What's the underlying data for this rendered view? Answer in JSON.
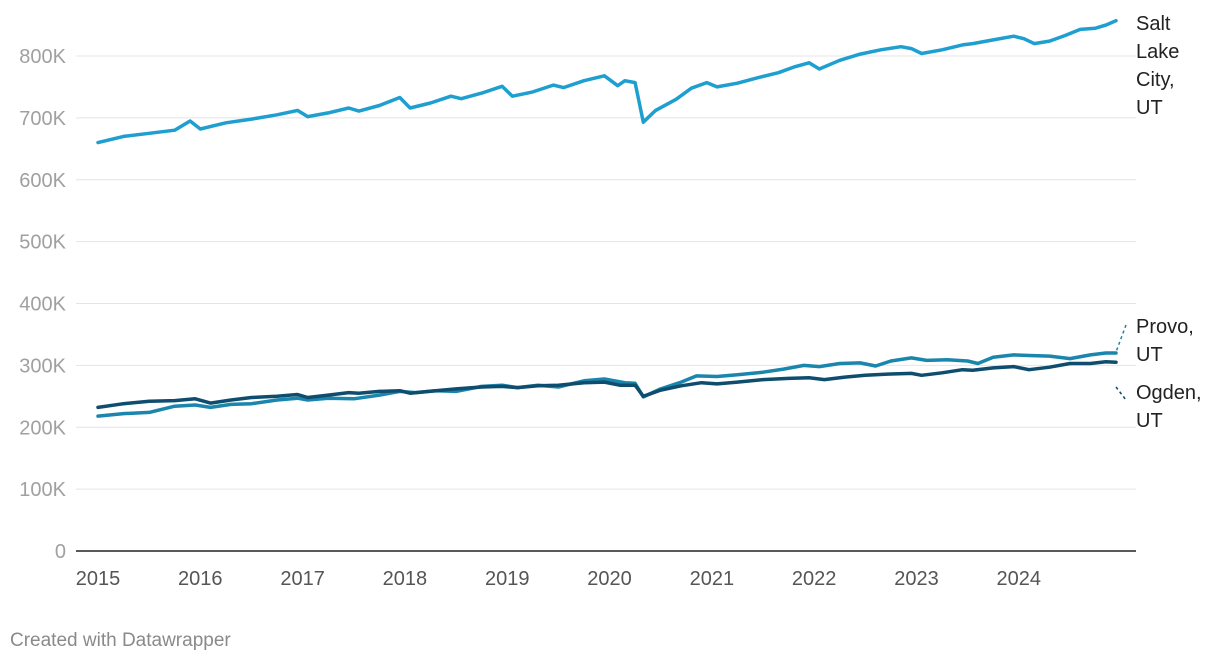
{
  "chart_data": {
    "type": "line",
    "xlim": [
      2015,
      2024.95
    ],
    "ylim": [
      0,
      850000
    ],
    "y_ticks": [
      {
        "value": 0,
        "label": "0"
      },
      {
        "value": 100000,
        "label": "100K"
      },
      {
        "value": 200000,
        "label": "200K"
      },
      {
        "value": 300000,
        "label": "300K"
      },
      {
        "value": 400000,
        "label": "400K"
      },
      {
        "value": 500000,
        "label": "500K"
      },
      {
        "value": 600000,
        "label": "600K"
      },
      {
        "value": 700000,
        "label": "700K"
      },
      {
        "value": 800000,
        "label": "800K"
      }
    ],
    "x_ticks": [
      {
        "value": 2015,
        "label": "2015"
      },
      {
        "value": 2016,
        "label": "2016"
      },
      {
        "value": 2017,
        "label": "2017"
      },
      {
        "value": 2018,
        "label": "2018"
      },
      {
        "value": 2019,
        "label": "2019"
      },
      {
        "value": 2020,
        "label": "2020"
      },
      {
        "value": 2021,
        "label": "2021"
      },
      {
        "value": 2022,
        "label": "2022"
      },
      {
        "value": 2023,
        "label": "2023"
      },
      {
        "value": 2024,
        "label": "2024"
      }
    ],
    "grid": "horizontal",
    "series": [
      {
        "name": "Salt Lake City, UT",
        "label_lines": [
          "Salt",
          "Lake",
          "City,",
          "UT"
        ],
        "color": "#1e9fd0",
        "points": [
          [
            2015.0,
            660000
          ],
          [
            2015.25,
            670000
          ],
          [
            2015.5,
            675000
          ],
          [
            2015.75,
            680000
          ],
          [
            2015.9,
            695000
          ],
          [
            2016.0,
            682000
          ],
          [
            2016.25,
            692000
          ],
          [
            2016.5,
            698000
          ],
          [
            2016.75,
            705000
          ],
          [
            2016.95,
            712000
          ],
          [
            2017.05,
            702000
          ],
          [
            2017.25,
            708000
          ],
          [
            2017.45,
            716000
          ],
          [
            2017.55,
            711000
          ],
          [
            2017.75,
            720000
          ],
          [
            2017.95,
            733000
          ],
          [
            2018.05,
            716000
          ],
          [
            2018.25,
            724000
          ],
          [
            2018.45,
            735000
          ],
          [
            2018.55,
            731000
          ],
          [
            2018.75,
            740000
          ],
          [
            2018.95,
            751000
          ],
          [
            2019.05,
            735000
          ],
          [
            2019.25,
            742000
          ],
          [
            2019.45,
            753000
          ],
          [
            2019.55,
            749000
          ],
          [
            2019.75,
            760000
          ],
          [
            2019.95,
            768000
          ],
          [
            2020.08,
            752000
          ],
          [
            2020.15,
            760000
          ],
          [
            2020.25,
            757000
          ],
          [
            2020.33,
            693000
          ],
          [
            2020.45,
            712000
          ],
          [
            2020.65,
            730000
          ],
          [
            2020.8,
            748000
          ],
          [
            2020.95,
            757000
          ],
          [
            2021.05,
            750000
          ],
          [
            2021.25,
            756000
          ],
          [
            2021.45,
            765000
          ],
          [
            2021.65,
            773000
          ],
          [
            2021.8,
            782000
          ],
          [
            2021.95,
            789000
          ],
          [
            2022.05,
            779000
          ],
          [
            2022.25,
            793000
          ],
          [
            2022.45,
            803000
          ],
          [
            2022.65,
            810000
          ],
          [
            2022.85,
            815000
          ],
          [
            2022.95,
            812000
          ],
          [
            2023.05,
            804000
          ],
          [
            2023.25,
            810000
          ],
          [
            2023.45,
            818000
          ],
          [
            2023.55,
            820000
          ],
          [
            2023.75,
            826000
          ],
          [
            2023.95,
            832000
          ],
          [
            2024.05,
            828000
          ],
          [
            2024.15,
            820000
          ],
          [
            2024.3,
            824000
          ],
          [
            2024.45,
            833000
          ],
          [
            2024.6,
            843000
          ],
          [
            2024.75,
            845000
          ],
          [
            2024.85,
            850000
          ],
          [
            2024.95,
            857000
          ]
        ]
      },
      {
        "name": "Provo, UT",
        "label_lines": [
          "Provo,",
          "UT"
        ],
        "color": "#1a86ad",
        "points": [
          [
            2015.0,
            218000
          ],
          [
            2015.25,
            222000
          ],
          [
            2015.5,
            224000
          ],
          [
            2015.75,
            234000
          ],
          [
            2015.95,
            236000
          ],
          [
            2016.1,
            232000
          ],
          [
            2016.3,
            237000
          ],
          [
            2016.5,
            238000
          ],
          [
            2016.75,
            244000
          ],
          [
            2016.95,
            247000
          ],
          [
            2017.05,
            244000
          ],
          [
            2017.25,
            247000
          ],
          [
            2017.5,
            246000
          ],
          [
            2017.75,
            252000
          ],
          [
            2017.95,
            258000
          ],
          [
            2018.1,
            256000
          ],
          [
            2018.3,
            259000
          ],
          [
            2018.5,
            258000
          ],
          [
            2018.75,
            266000
          ],
          [
            2018.95,
            268000
          ],
          [
            2019.1,
            264000
          ],
          [
            2019.3,
            268000
          ],
          [
            2019.5,
            265000
          ],
          [
            2019.75,
            275000
          ],
          [
            2019.95,
            278000
          ],
          [
            2020.15,
            272000
          ],
          [
            2020.25,
            271000
          ],
          [
            2020.33,
            249000
          ],
          [
            2020.5,
            262000
          ],
          [
            2020.7,
            273000
          ],
          [
            2020.85,
            283000
          ],
          [
            2021.05,
            282000
          ],
          [
            2021.25,
            285000
          ],
          [
            2021.5,
            289000
          ],
          [
            2021.7,
            294000
          ],
          [
            2021.9,
            300000
          ],
          [
            2022.05,
            298000
          ],
          [
            2022.25,
            303000
          ],
          [
            2022.45,
            304000
          ],
          [
            2022.6,
            299000
          ],
          [
            2022.75,
            307000
          ],
          [
            2022.95,
            312000
          ],
          [
            2023.1,
            308000
          ],
          [
            2023.3,
            309000
          ],
          [
            2023.5,
            307000
          ],
          [
            2023.6,
            303000
          ],
          [
            2023.75,
            313000
          ],
          [
            2023.95,
            317000
          ],
          [
            2024.1,
            316000
          ],
          [
            2024.3,
            315000
          ],
          [
            2024.5,
            311000
          ],
          [
            2024.7,
            317000
          ],
          [
            2024.85,
            320000
          ],
          [
            2024.95,
            320000
          ]
        ]
      },
      {
        "name": "Ogden, UT",
        "label_lines": [
          "Ogden,",
          "UT"
        ],
        "color": "#0e4d6e",
        "points": [
          [
            2015.0,
            232000
          ],
          [
            2015.25,
            238000
          ],
          [
            2015.5,
            242000
          ],
          [
            2015.75,
            243000
          ],
          [
            2015.95,
            246000
          ],
          [
            2016.1,
            239000
          ],
          [
            2016.3,
            244000
          ],
          [
            2016.5,
            248000
          ],
          [
            2016.75,
            250000
          ],
          [
            2016.95,
            253000
          ],
          [
            2017.05,
            248000
          ],
          [
            2017.25,
            252000
          ],
          [
            2017.45,
            256000
          ],
          [
            2017.55,
            255000
          ],
          [
            2017.75,
            258000
          ],
          [
            2017.95,
            259000
          ],
          [
            2018.05,
            255000
          ],
          [
            2018.3,
            259000
          ],
          [
            2018.5,
            262000
          ],
          [
            2018.75,
            265000
          ],
          [
            2018.95,
            266000
          ],
          [
            2019.1,
            264000
          ],
          [
            2019.3,
            267000
          ],
          [
            2019.5,
            268000
          ],
          [
            2019.75,
            272000
          ],
          [
            2019.95,
            273000
          ],
          [
            2020.1,
            268000
          ],
          [
            2020.25,
            268000
          ],
          [
            2020.33,
            250000
          ],
          [
            2020.5,
            260000
          ],
          [
            2020.7,
            267000
          ],
          [
            2020.9,
            272000
          ],
          [
            2021.05,
            270000
          ],
          [
            2021.25,
            273000
          ],
          [
            2021.5,
            277000
          ],
          [
            2021.75,
            279000
          ],
          [
            2021.95,
            280000
          ],
          [
            2022.1,
            277000
          ],
          [
            2022.3,
            281000
          ],
          [
            2022.5,
            284000
          ],
          [
            2022.75,
            286000
          ],
          [
            2022.95,
            287000
          ],
          [
            2023.05,
            284000
          ],
          [
            2023.25,
            288000
          ],
          [
            2023.45,
            293000
          ],
          [
            2023.55,
            292000
          ],
          [
            2023.75,
            296000
          ],
          [
            2023.95,
            298000
          ],
          [
            2024.1,
            293000
          ],
          [
            2024.3,
            297000
          ],
          [
            2024.5,
            303000
          ],
          [
            2024.7,
            303000
          ],
          [
            2024.85,
            306000
          ],
          [
            2024.95,
            305000
          ]
        ]
      }
    ]
  },
  "footer": {
    "credit": "Created with Datawrapper"
  }
}
